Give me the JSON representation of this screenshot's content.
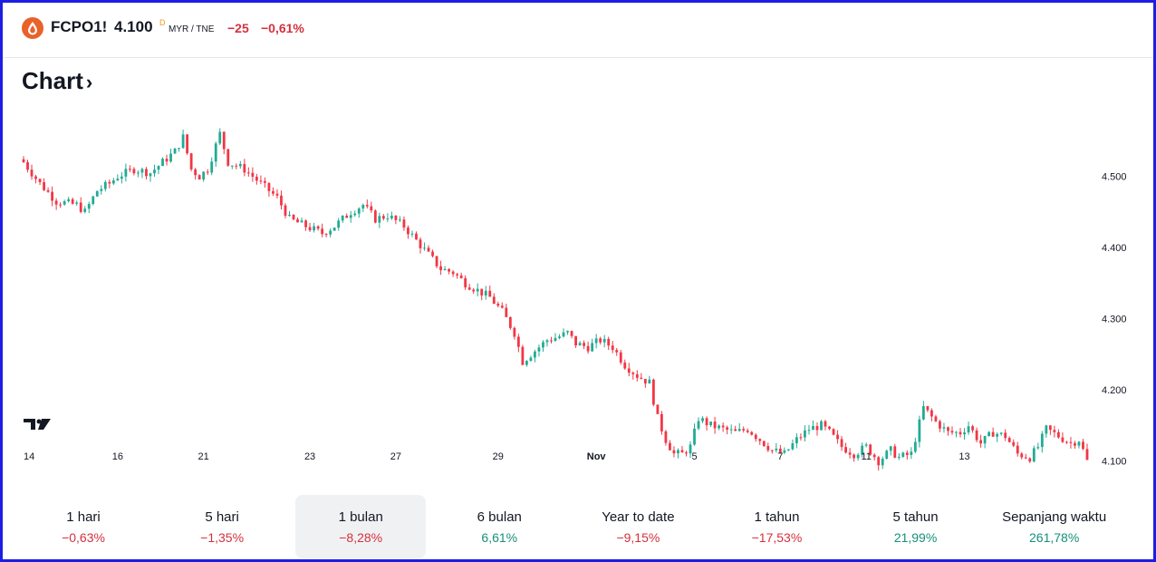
{
  "header": {
    "ticker": "FCPO1!",
    "price": "4.100",
    "price_flag": "D",
    "currency": "MYR / TNE",
    "change_abs": "−25",
    "change_pct": "−0,61%",
    "logo_icon": "droplet-icon"
  },
  "section": {
    "title": "Chart",
    "chevron": "›"
  },
  "colors": {
    "up": "#22ab94",
    "down": "#f23645",
    "accent_logo": "#e8622a",
    "negative_text": "#d4313d",
    "positive_text": "#168f7a"
  },
  "chart_data": {
    "type": "candlestick",
    "title": "",
    "xlabel": "",
    "ylabel": "",
    "ylim": [
      4.06,
      4.595
    ],
    "y_ticks": [
      "4.500",
      "4.400",
      "4.300",
      "4.200",
      "4.100"
    ],
    "y_tick_values": [
      4.5,
      4.4,
      4.3,
      4.2,
      4.1
    ],
    "x_ticks": [
      "14",
      "16",
      "21",
      "23",
      "27",
      "29",
      "Nov",
      "5",
      "7",
      "11",
      "13"
    ],
    "x_tick_index": [
      0,
      23,
      44,
      70,
      91,
      116,
      140,
      164,
      185,
      206,
      230
    ],
    "logo": "TV",
    "close_anchors": [
      [
        0,
        4.52
      ],
      [
        4,
        4.49
      ],
      [
        8,
        4.465
      ],
      [
        13,
        4.46
      ],
      [
        15,
        4.45
      ],
      [
        18,
        4.48
      ],
      [
        21,
        4.49
      ],
      [
        23,
        4.5
      ],
      [
        27,
        4.51
      ],
      [
        31,
        4.505
      ],
      [
        34,
        4.52
      ],
      [
        37,
        4.535
      ],
      [
        39,
        4.555
      ],
      [
        41,
        4.51
      ],
      [
        43,
        4.5
      ],
      [
        45,
        4.51
      ],
      [
        48,
        4.56
      ],
      [
        50,
        4.52
      ],
      [
        54,
        4.51
      ],
      [
        58,
        4.49
      ],
      [
        60,
        4.48
      ],
      [
        62,
        4.47
      ],
      [
        65,
        4.44
      ],
      [
        69,
        4.43
      ],
      [
        73,
        4.42
      ],
      [
        76,
        4.43
      ],
      [
        80,
        4.45
      ],
      [
        83,
        4.46
      ],
      [
        86,
        4.44
      ],
      [
        89,
        4.445
      ],
      [
        93,
        4.43
      ],
      [
        96,
        4.41
      ],
      [
        99,
        4.39
      ],
      [
        102,
        4.37
      ],
      [
        105,
        4.365
      ],
      [
        108,
        4.35
      ],
      [
        111,
        4.34
      ],
      [
        114,
        4.33
      ],
      [
        117,
        4.31
      ],
      [
        120,
        4.28
      ],
      [
        122,
        4.24
      ],
      [
        125,
        4.255
      ],
      [
        128,
        4.27
      ],
      [
        131,
        4.275
      ],
      [
        133,
        4.28
      ],
      [
        135,
        4.265
      ],
      [
        138,
        4.26
      ],
      [
        141,
        4.27
      ],
      [
        144,
        4.26
      ],
      [
        147,
        4.235
      ],
      [
        150,
        4.22
      ],
      [
        153,
        4.21
      ],
      [
        155,
        4.16
      ],
      [
        157,
        4.13
      ],
      [
        159,
        4.11
      ],
      [
        161,
        4.11
      ],
      [
        163,
        4.12
      ],
      [
        165,
        4.16
      ],
      [
        168,
        4.15
      ],
      [
        171,
        4.145
      ],
      [
        174,
        4.14
      ],
      [
        177,
        4.145
      ],
      [
        180,
        4.13
      ],
      [
        183,
        4.115
      ],
      [
        186,
        4.11
      ],
      [
        189,
        4.13
      ],
      [
        192,
        4.145
      ],
      [
        195,
        4.15
      ],
      [
        197,
        4.14
      ],
      [
        200,
        4.12
      ],
      [
        203,
        4.11
      ],
      [
        206,
        4.12
      ],
      [
        209,
        4.1
      ],
      [
        212,
        4.115
      ],
      [
        214,
        4.105
      ],
      [
        217,
        4.11
      ],
      [
        220,
        4.175
      ],
      [
        223,
        4.155
      ],
      [
        226,
        4.14
      ],
      [
        229,
        4.14
      ],
      [
        231,
        4.15
      ],
      [
        234,
        4.125
      ],
      [
        237,
        4.14
      ],
      [
        240,
        4.135
      ],
      [
        243,
        4.11
      ],
      [
        246,
        4.105
      ],
      [
        248,
        4.12
      ],
      [
        250,
        4.145
      ],
      [
        253,
        4.135
      ],
      [
        256,
        4.125
      ],
      [
        258,
        4.13
      ],
      [
        260,
        4.1
      ]
    ]
  },
  "periods": [
    {
      "label": "1 hari",
      "value": "−0,63%",
      "trend": "neg",
      "active": false
    },
    {
      "label": "5 hari",
      "value": "−1,35%",
      "trend": "neg",
      "active": false
    },
    {
      "label": "1 bulan",
      "value": "−8,28%",
      "trend": "neg",
      "active": true
    },
    {
      "label": "6 bulan",
      "value": "6,61%",
      "trend": "pos",
      "active": false
    },
    {
      "label": "Year to date",
      "value": "−9,15%",
      "trend": "neg",
      "active": false
    },
    {
      "label": "1 tahun",
      "value": "−17,53%",
      "trend": "neg",
      "active": false
    },
    {
      "label": "5 tahun",
      "value": "21,99%",
      "trend": "pos",
      "active": false
    },
    {
      "label": "Sepanjang waktu",
      "value": "261,78%",
      "trend": "pos",
      "active": false
    }
  ]
}
